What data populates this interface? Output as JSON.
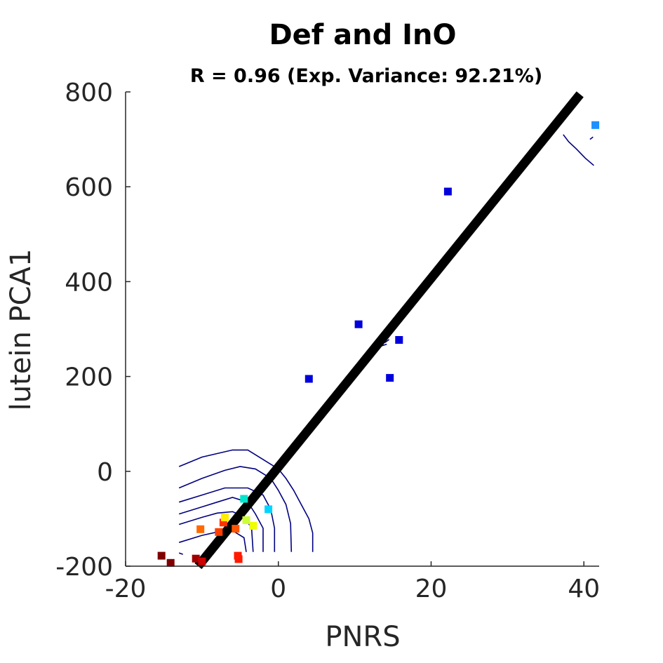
{
  "chart_data": {
    "type": "scatter",
    "title": "Def and InO",
    "subtitle": "R = 0.96 (Exp. Variance: 92.21%)",
    "xlabel": "PNRS",
    "ylabel": "lutein PCA1",
    "xlim": [
      -20,
      42
    ],
    "ylim": [
      -200,
      800
    ],
    "x_ticks": [
      -20,
      0,
      20,
      40
    ],
    "y_ticks": [
      -200,
      0,
      200,
      400,
      600,
      800
    ],
    "x_tick_labels": [
      "-20",
      "0",
      "20",
      "40"
    ],
    "y_tick_labels": [
      "-200",
      "0",
      "200",
      "400",
      "600",
      "800"
    ],
    "grid": false,
    "legend": "none",
    "fit_line": {
      "color": "#000000",
      "points": [
        [
          -10.5,
          -200
        ],
        [
          39.5,
          795
        ]
      ]
    },
    "points": [
      {
        "x": -15.3,
        "y": -178,
        "color": "#800000"
      },
      {
        "x": -14.1,
        "y": -193,
        "color": "#800000"
      },
      {
        "x": -10.8,
        "y": -184,
        "color": "#a00000"
      },
      {
        "x": -10.0,
        "y": -190,
        "color": "#cc0000"
      },
      {
        "x": -5.3,
        "y": -178,
        "color": "#ff1a00"
      },
      {
        "x": -5.2,
        "y": -185,
        "color": "#ff1a00"
      },
      {
        "x": -10.2,
        "y": -122,
        "color": "#ff6a00"
      },
      {
        "x": -7.8,
        "y": -128,
        "color": "#ff4000"
      },
      {
        "x": -5.6,
        "y": -121,
        "color": "#ff5500"
      },
      {
        "x": -7.2,
        "y": -108,
        "color": "#ff3300"
      },
      {
        "x": -7.0,
        "y": -97,
        "color": "#ffee00"
      },
      {
        "x": -4.2,
        "y": -103,
        "color": "#ccff33"
      },
      {
        "x": -3.3,
        "y": -115,
        "color": "#eeff00"
      },
      {
        "x": -4.5,
        "y": -58,
        "color": "#00e5cc"
      },
      {
        "x": -1.3,
        "y": -80,
        "color": "#00d4ff"
      },
      {
        "x": 4.0,
        "y": 195,
        "color": "#0000dd"
      },
      {
        "x": 10.5,
        "y": 310,
        "color": "#0000dd"
      },
      {
        "x": 14.6,
        "y": 197,
        "color": "#0000dd"
      },
      {
        "x": 15.8,
        "y": 277,
        "color": "#0000dd"
      },
      {
        "x": 22.2,
        "y": 590,
        "color": "#0000dd"
      },
      {
        "x": 41.5,
        "y": 730,
        "color": "#1e90ff"
      }
    ],
    "contours": {
      "color": "#000080",
      "lines": [
        [
          [
            -13,
            10
          ],
          [
            -10,
            30
          ],
          [
            -6,
            45
          ],
          [
            -4,
            45
          ],
          [
            -2,
            25
          ],
          [
            0,
            5
          ],
          [
            1,
            -15
          ],
          [
            2,
            -40
          ],
          [
            3,
            -70
          ],
          [
            4,
            -100
          ],
          [
            4.5,
            -130
          ],
          [
            4.5,
            -170
          ]
        ],
        [
          [
            -13,
            -35
          ],
          [
            -10,
            -15
          ],
          [
            -7,
            2
          ],
          [
            -5,
            10
          ],
          [
            -3,
            5
          ],
          [
            -1,
            -15
          ],
          [
            0,
            -40
          ],
          [
            1,
            -70
          ],
          [
            1.6,
            -110
          ],
          [
            1.7,
            -170
          ]
        ],
        [
          [
            -13,
            -65
          ],
          [
            -10,
            -50
          ],
          [
            -7,
            -35
          ],
          [
            -4,
            -35
          ],
          [
            -2,
            -50
          ],
          [
            -1,
            -80
          ],
          [
            -0.5,
            -120
          ],
          [
            -0.5,
            -170
          ]
        ],
        [
          [
            -13,
            -90
          ],
          [
            -10,
            -75
          ],
          [
            -8,
            -65
          ],
          [
            -6,
            -55
          ],
          [
            -4,
            -65
          ],
          [
            -3,
            -90
          ],
          [
            -2,
            -120
          ],
          [
            -2,
            -170
          ]
        ],
        [
          [
            -13,
            -112
          ],
          [
            -10,
            -97
          ],
          [
            -8,
            -88
          ],
          [
            -6,
            -85
          ],
          [
            -4.5,
            -95
          ],
          [
            -3.5,
            -120
          ],
          [
            -3.3,
            -170
          ]
        ],
        [
          [
            -13,
            -150
          ],
          [
            -10,
            -135
          ],
          [
            -8,
            -128
          ],
          [
            -6,
            -125
          ],
          [
            -4.5,
            -140
          ],
          [
            -4.2,
            -170
          ]
        ],
        [
          [
            -13,
            -172
          ],
          [
            -12.5,
            -175
          ]
        ],
        [
          [
            12.7,
            268
          ],
          [
            14.0,
            272
          ],
          [
            14.5,
            278
          ]
        ],
        [
          [
            13.0,
            262
          ],
          [
            14.2,
            268
          ]
        ],
        [
          [
            37.3,
            710
          ],
          [
            38.0,
            695
          ],
          [
            39.0,
            680
          ],
          [
            40.2,
            660
          ],
          [
            41.3,
            645
          ]
        ],
        [
          [
            40.8,
            700
          ],
          [
            41.2,
            705
          ]
        ]
      ]
    }
  }
}
